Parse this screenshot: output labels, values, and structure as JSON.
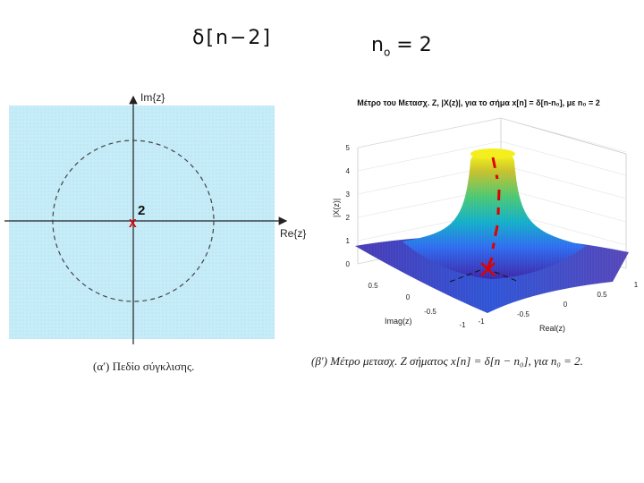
{
  "annotations": {
    "delta": "δ[n−2]",
    "n0_symbol": "n",
    "n0_sub": "o",
    "n0_value": "= 2"
  },
  "roc": {
    "im_label": "Im{z}",
    "re_label": "Re{z}",
    "pole_multiplicity": "2",
    "pole_marker": "X",
    "caption": "(α′) Πεδίο σύγκλισης.",
    "fill_color": "#c6ecf8",
    "marker_color": "#e00000"
  },
  "plot3d": {
    "title": "Μέτρο του Μετασχ. Z, |X(z)|, για το σήμα x[n] = δ[n-n₀], με n₀ = 2",
    "zlabel": "|X(z)|",
    "xlabel": "Real(z)",
    "ylabel": "Imag(z)",
    "z_ticks": [
      "0",
      "1",
      "2",
      "3",
      "4",
      "5"
    ],
    "x_ticks": [
      "-1",
      "-0.5",
      "0",
      "0.5",
      "1"
    ],
    "y_ticks": [
      "-1",
      "-0.5",
      "0",
      "0.5"
    ],
    "caption": "(β′) Μέτρο μετασχ. Z σήματος x[n] = δ[n − n₀], για n₀ = 2.",
    "colormap": [
      "#3e26a8",
      "#2f6cf0",
      "#13b0c9",
      "#4cc873",
      "#c9c12c",
      "#f9fb15"
    ]
  }
}
